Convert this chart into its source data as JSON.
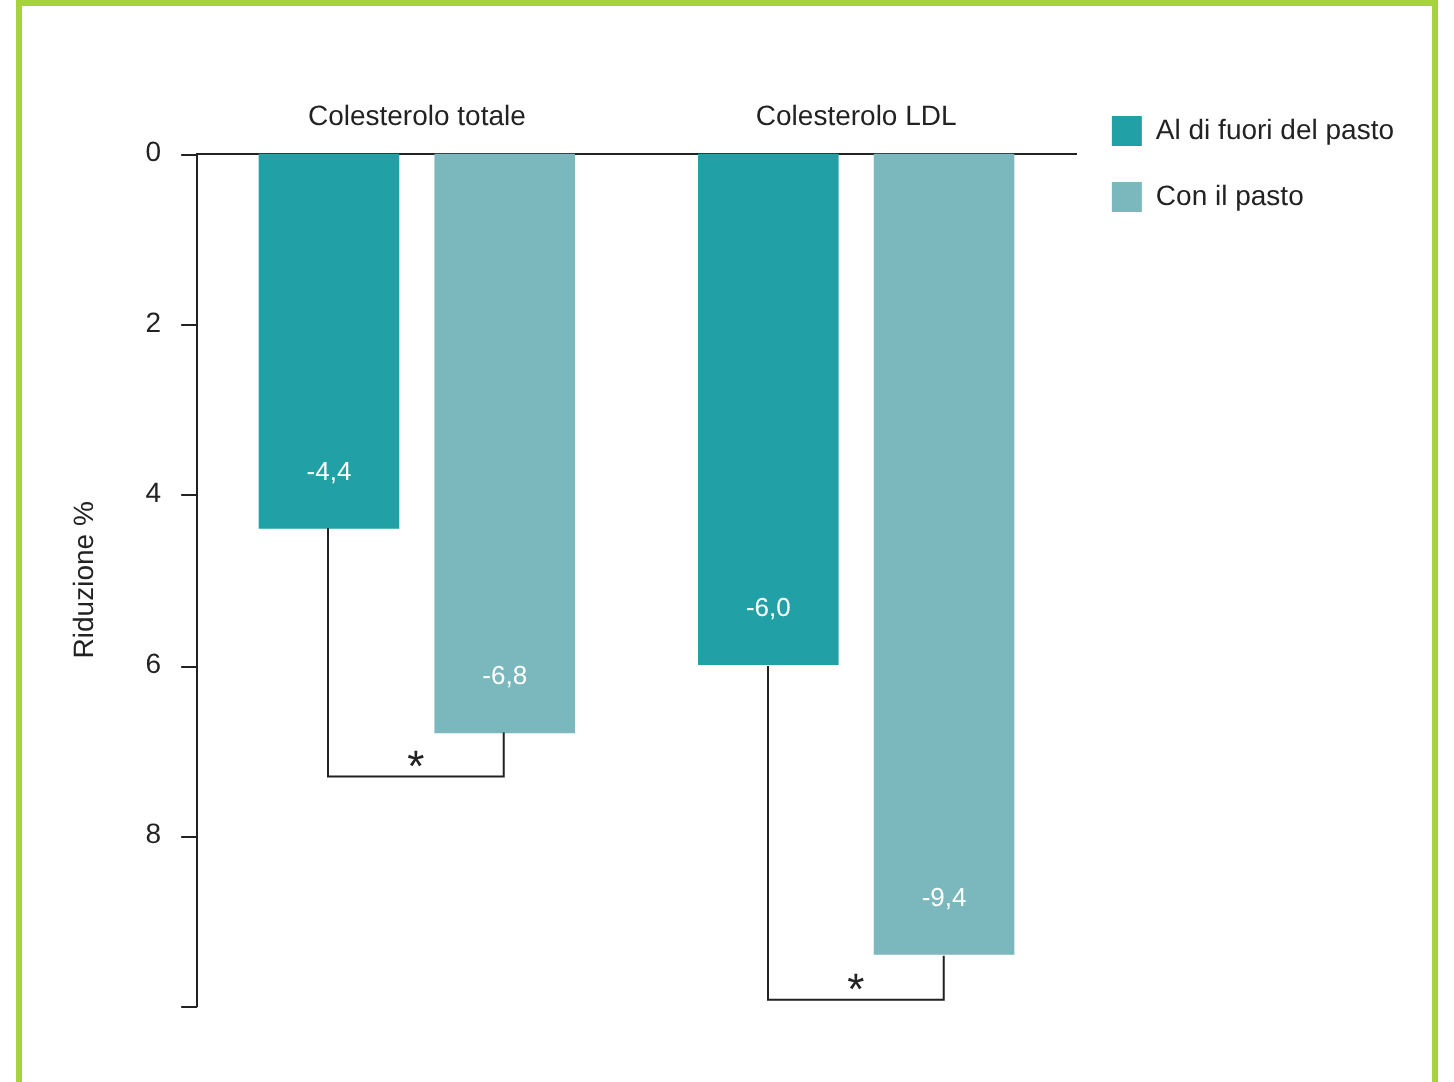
{
  "chart_data": {
    "type": "bar",
    "categories": [
      "Colesterolo totale",
      "Colesterolo LDL"
    ],
    "series": [
      {
        "name": "Al di fuori del pasto",
        "color": "#21a0a6",
        "values": [
          -4.4,
          -6.0
        ],
        "value_labels": [
          "-4,4",
          "-6,0"
        ]
      },
      {
        "name": "Con il pasto",
        "color": "#7ab8bd",
        "values": [
          -6.8,
          -9.4
        ],
        "value_labels": [
          "-6,8",
          "-9,4"
        ]
      }
    ],
    "ylabel": "Riduzione %",
    "ylim": [
      -10,
      0
    ],
    "yticks": [
      0,
      {
        "value": -2,
        "label": "2"
      },
      {
        "value": -4,
        "label": "4"
      },
      {
        "value": -6,
        "label": "6"
      },
      {
        "value": -8,
        "label": "8"
      },
      {
        "value": -10,
        "label": null
      }
    ],
    "annotations": [
      "*",
      "*"
    ],
    "grid": false,
    "legend": "top right"
  }
}
